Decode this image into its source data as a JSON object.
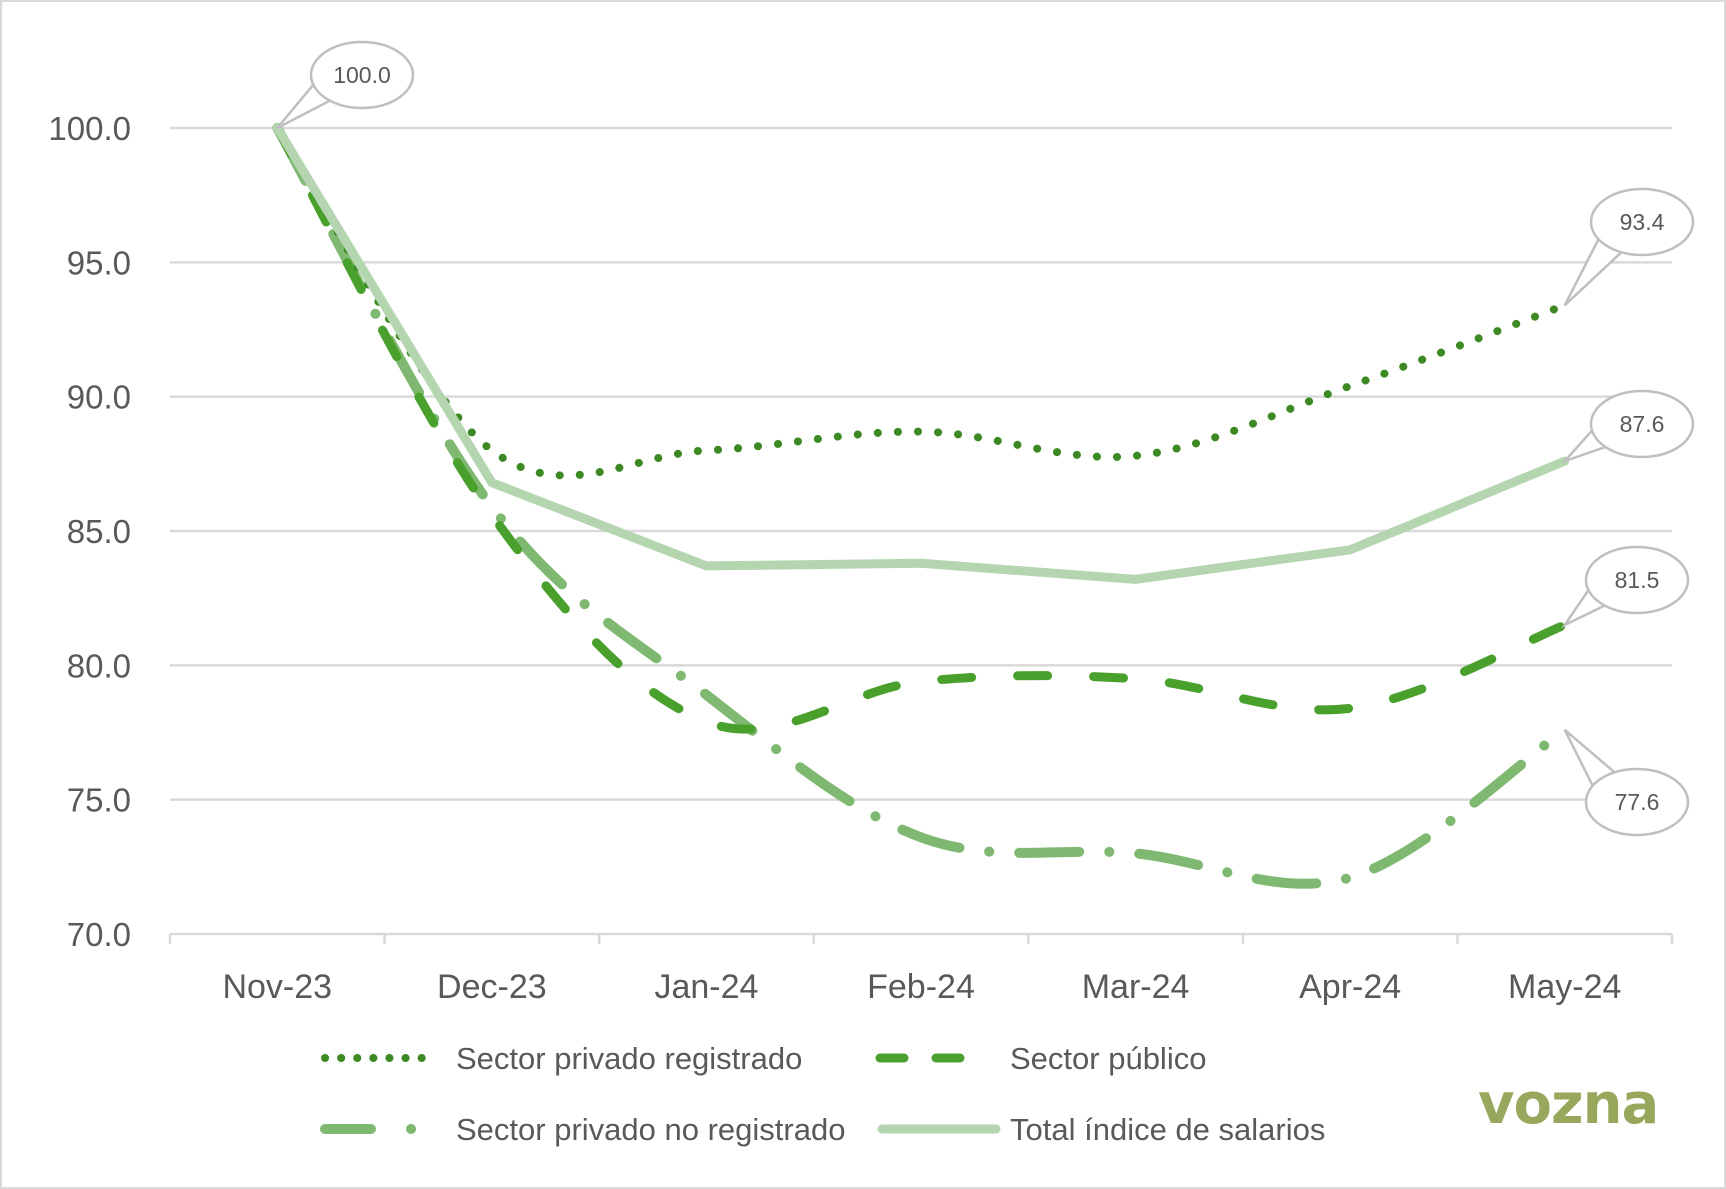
{
  "chart_data": {
    "type": "line",
    "title": "",
    "xlabel": "",
    "ylabel": "",
    "categories": [
      "Nov-23",
      "Dec-23",
      "Jan-24",
      "Feb-24",
      "Mar-24",
      "Apr-24",
      "May-24"
    ],
    "ylim": [
      70.0,
      100.0
    ],
    "yticks": [
      "70.0",
      "75.0",
      "80.0",
      "85.0",
      "90.0",
      "95.0",
      "100.0"
    ],
    "ytick_values": [
      70,
      75,
      80,
      85,
      90,
      95,
      100
    ],
    "grid": true,
    "legend_position": "bottom",
    "series": [
      {
        "name": "Sector privado registrado",
        "style": "dotted",
        "color": "#3d8a24",
        "values": [
          100.0,
          88.0,
          88.0,
          88.7,
          87.8,
          90.4,
          93.4
        ]
      },
      {
        "name": "Sector público",
        "style": "dashed",
        "color": "#4aa02c",
        "values": [
          100.0,
          85.6,
          77.9,
          79.4,
          79.5,
          78.4,
          81.5
        ]
      },
      {
        "name": "Sector privado no registrado",
        "style": "long-dash-dot",
        "color": "#7fb971",
        "values": [
          100.0,
          85.9,
          78.9,
          73.6,
          73.0,
          72.1,
          77.6
        ]
      },
      {
        "name": "Total índice de salarios",
        "style": "solid",
        "color": "#b4d5b0",
        "values": [
          100.0,
          86.8,
          83.7,
          83.8,
          83.2,
          84.3,
          87.6
        ]
      }
    ],
    "data_labels": [
      {
        "text": "100.0",
        "category": "Nov-23",
        "value": 100.0
      },
      {
        "text": "93.4",
        "category": "May-24",
        "value": 93.4
      },
      {
        "text": "87.6",
        "category": "May-24",
        "value": 87.6
      },
      {
        "text": "81.5",
        "category": "May-24",
        "value": 81.5
      },
      {
        "text": "77.6",
        "category": "May-24",
        "value": 77.6
      }
    ]
  },
  "legend": {
    "items": [
      "Sector privado registrado",
      "Sector público",
      "Sector privado no registrado",
      "Total índice de salarios"
    ]
  },
  "branding": {
    "logo_text": "vozna",
    "logo_color": "#97a85d"
  }
}
